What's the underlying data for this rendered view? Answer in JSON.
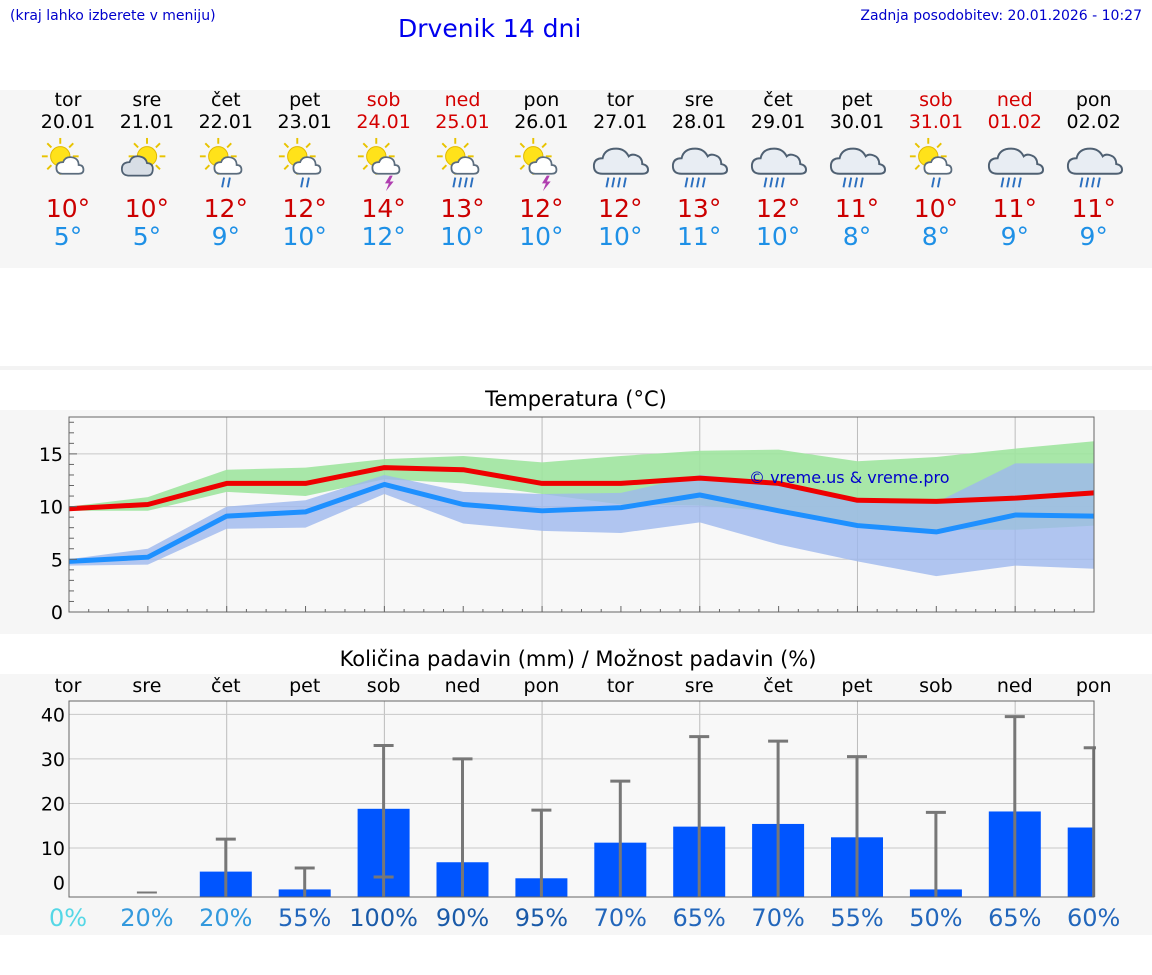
{
  "header": {
    "hint": "(kraj lahko izberete v meniju)",
    "title": "Drvenik 14 dni",
    "updated": "Zadnja posodobitev: 20.01.2026 - 10:27"
  },
  "colors": {
    "max_temp": "#cc0000",
    "min_temp": "#1e90e6",
    "weekend": "#d40000",
    "precip_bar": "#0055ff"
  },
  "days": [
    {
      "name": "tor",
      "date": "20.01",
      "icon": "sun-partly-cloudy-icon",
      "max": "10°",
      "min": "5°",
      "weekend": false
    },
    {
      "name": "sre",
      "date": "21.01",
      "icon": "sun-cloudy-icon",
      "max": "10°",
      "min": "5°",
      "weekend": false
    },
    {
      "name": "čet",
      "date": "22.01",
      "icon": "sun-cloud-rain-icon",
      "max": "12°",
      "min": "9°",
      "weekend": false
    },
    {
      "name": "pet",
      "date": "23.01",
      "icon": "sun-cloud-rain-icon",
      "max": "12°",
      "min": "10°",
      "weekend": false
    },
    {
      "name": "sob",
      "date": "24.01",
      "icon": "sun-thunderstorm-icon",
      "max": "14°",
      "min": "12°",
      "weekend": true
    },
    {
      "name": "ned",
      "date": "25.01",
      "icon": "sun-cloud-heavy-rain-icon",
      "max": "13°",
      "min": "10°",
      "weekend": true
    },
    {
      "name": "pon",
      "date": "26.01",
      "icon": "sun-thunderstorm-icon",
      "max": "12°",
      "min": "10°",
      "weekend": false
    },
    {
      "name": "tor",
      "date": "27.01",
      "icon": "cloud-rain-icon",
      "max": "12°",
      "min": "10°",
      "weekend": false
    },
    {
      "name": "sre",
      "date": "28.01",
      "icon": "cloud-rain-icon",
      "max": "13°",
      "min": "11°",
      "weekend": false
    },
    {
      "name": "čet",
      "date": "29.01",
      "icon": "cloud-rain-icon",
      "max": "12°",
      "min": "10°",
      "weekend": false
    },
    {
      "name": "pet",
      "date": "30.01",
      "icon": "cloud-rain-icon",
      "max": "11°",
      "min": "8°",
      "weekend": false
    },
    {
      "name": "sob",
      "date": "31.01",
      "icon": "sun-cloud-rain-icon",
      "max": "10°",
      "min": "8°",
      "weekend": true
    },
    {
      "name": "ned",
      "date": "01.02",
      "icon": "cloud-rain-icon",
      "max": "11°",
      "min": "9°",
      "weekend": true
    },
    {
      "name": "pon",
      "date": "02.02",
      "icon": "cloud-rain-icon",
      "max": "11°",
      "min": "9°",
      "weekend": false
    }
  ],
  "chart_data": [
    {
      "type": "line",
      "title": "Temperatura (°C)",
      "watermark": "© vreme.us & vreme.pro",
      "ylim": [
        0,
        18.5
      ],
      "yticks": [
        0,
        5,
        10,
        15
      ],
      "x": [
        0,
        1,
        2,
        3,
        4,
        5,
        6,
        7,
        8,
        9,
        10,
        11,
        12,
        13
      ],
      "xlim": [
        0,
        13
      ],
      "series": [
        {
          "name": "max",
          "color": "#ee0000",
          "values": [
            9.8,
            10.2,
            12.2,
            12.2,
            13.7,
            13.5,
            12.2,
            12.2,
            12.7,
            12.2,
            10.6,
            10.5,
            10.8,
            11.3
          ]
        },
        {
          "name": "min",
          "color": "#1e90ff",
          "values": [
            4.8,
            5.2,
            9.1,
            9.5,
            12.1,
            10.2,
            9.6,
            9.9,
            11.1,
            9.6,
            8.2,
            7.6,
            9.2,
            9.1
          ]
        }
      ],
      "bands": [
        {
          "name": "max-range",
          "color": "#9ee49e",
          "upper": [
            10.0,
            10.9,
            13.5,
            13.7,
            14.5,
            14.8,
            14.2,
            14.8,
            15.3,
            15.4,
            14.3,
            14.7,
            15.5,
            16.2
          ],
          "lower": [
            9.6,
            9.6,
            11.4,
            11.0,
            12.6,
            12.2,
            11.2,
            10.2,
            10.1,
            9.5,
            8.2,
            7.8,
            7.8,
            8.2
          ]
        },
        {
          "name": "min-range",
          "color": "#9db8ee",
          "upper": [
            5.0,
            6.0,
            10.0,
            10.6,
            13.0,
            11.4,
            11.2,
            11.3,
            13.0,
            12.3,
            10.4,
            10.4,
            14.1,
            14.1
          ],
          "lower": [
            4.4,
            4.5,
            7.9,
            8.0,
            11.2,
            8.4,
            7.7,
            7.5,
            8.5,
            6.4,
            4.8,
            3.4,
            4.4,
            4.1
          ]
        }
      ]
    },
    {
      "type": "bar",
      "title": "Količina padavin (mm) / Možnost padavin (%)",
      "categories": [
        "tor",
        "sre",
        "čet",
        "pet",
        "sob",
        "ned",
        "pon",
        "tor",
        "sre",
        "čet",
        "pet",
        "sob",
        "ned",
        "pon"
      ],
      "values": [
        0,
        0,
        4.7,
        0.7,
        18.8,
        6.8,
        3.2,
        11.2,
        14.8,
        15.4,
        12.4,
        0.7,
        18.2,
        14.6
      ],
      "error_high": [
        0,
        0,
        12,
        5.5,
        33,
        30,
        18.5,
        25,
        35,
        34,
        30.5,
        18,
        39.5,
        32.5
      ],
      "error_low": [
        0,
        0,
        0,
        0,
        3.5,
        0,
        0,
        0,
        0,
        0,
        0,
        0,
        0,
        0
      ],
      "ylim": [
        -1,
        43
      ],
      "yticks": [
        0,
        10,
        20,
        30,
        40
      ],
      "probability": [
        "0%",
        "20%",
        "20%",
        "55%",
        "100%",
        "90%",
        "95%",
        "70%",
        "65%",
        "70%",
        "55%",
        "50%",
        "65%",
        "60%"
      ],
      "probability_colors": [
        "#55d7e6",
        "#3399dd",
        "#3399dd",
        "#2266bb",
        "#1a5aa8",
        "#1a5aa8",
        "#1a5aa8",
        "#2266bb",
        "#2266bb",
        "#2266bb",
        "#2266bb",
        "#2266bb",
        "#2266bb",
        "#2266bb"
      ]
    }
  ]
}
